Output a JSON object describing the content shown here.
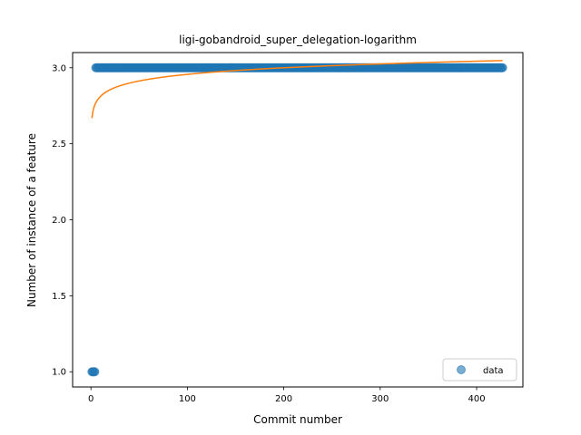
{
  "chart_data": {
    "type": "scatter",
    "title": "ligi-gobandroid_super_delegation-logarithm",
    "xlabel": "Commit number",
    "ylabel": "Number of instance of a feature",
    "xlim": [
      -19,
      448
    ],
    "ylim": [
      0.9,
      3.1
    ],
    "xticks": [
      0,
      100,
      200,
      300,
      400
    ],
    "yticks": [
      1.0,
      1.5,
      2.0,
      2.5,
      3.0
    ],
    "xtick_labels": [
      "0",
      "100",
      "200",
      "300",
      "400"
    ],
    "ytick_labels": [
      "1.0",
      "1.5",
      "2.0",
      "2.5",
      "3.0"
    ],
    "grid": false,
    "legend_position": "lower-right",
    "series": [
      {
        "name": "data",
        "kind": "scatter",
        "color": "#1f77b4",
        "points": [
          {
            "x_from": 1,
            "x_to": 4,
            "y": 1.0
          },
          {
            "x_from": 5,
            "x_to": 427,
            "y": 3.0
          }
        ]
      },
      {
        "kind": "line",
        "color": "#ff7f0e",
        "fit": "logarithmic",
        "x_range": [
          1,
          427
        ],
        "values": [
          {
            "x": 1,
            "y": 2.65
          },
          {
            "x": 3,
            "y": 2.75
          },
          {
            "x": 10,
            "y": 2.83
          },
          {
            "x": 50,
            "y": 2.91
          },
          {
            "x": 100,
            "y": 2.95
          },
          {
            "x": 200,
            "y": 3.0
          },
          {
            "x": 300,
            "y": 3.02
          },
          {
            "x": 427,
            "y": 3.05
          }
        ]
      }
    ]
  }
}
